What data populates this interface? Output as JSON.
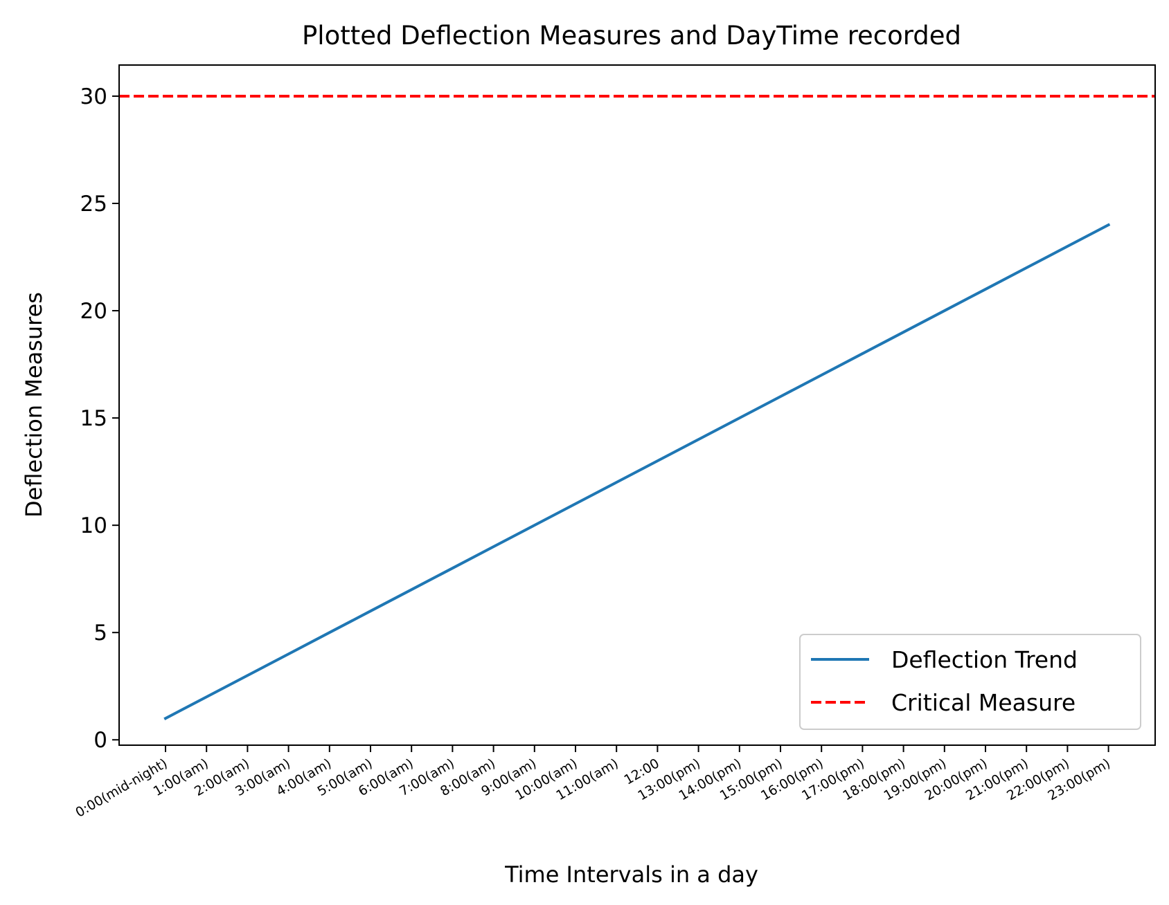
{
  "chart_data": {
    "type": "line",
    "title": "Plotted Deflection Measures and DayTime recorded",
    "xlabel": "Time Intervals in a day",
    "ylabel": "Deflection Measures",
    "categories": [
      "0:00(mid-night)",
      "1:00(am)",
      "2:00(am)",
      "3:00(am)",
      "4:00(am)",
      "5:00(am)",
      "6:00(am)",
      "7:00(am)",
      "8:00(am)",
      "9:00(am)",
      "10:00(am)",
      "11:00(am)",
      "12:00",
      "13:00(pm)",
      "14:00(pm)",
      "15:00(pm)",
      "16:00(pm)",
      "17:00(pm)",
      "18:00(pm)",
      "19:00(pm)",
      "20:00(pm)",
      "21:00(pm)",
      "22:00(pm)",
      "23:00(pm)"
    ],
    "series": [
      {
        "name": "Deflection Trend",
        "color": "#1f77b4",
        "style": "solid",
        "values": [
          1,
          2,
          3,
          4,
          5,
          6,
          7,
          8,
          9,
          10,
          11,
          12,
          13,
          14,
          15,
          16,
          17,
          18,
          19,
          20,
          21,
          22,
          23,
          24
        ]
      }
    ],
    "reference_lines": [
      {
        "name": "Critical Measure",
        "y": 30,
        "color": "#ff0000",
        "style": "dashed"
      }
    ],
    "ylim": [
      -0.25,
      31.45
    ],
    "yticks": [
      0,
      5,
      10,
      15,
      20,
      25,
      30
    ],
    "grid": false,
    "legend": "lower-right"
  }
}
